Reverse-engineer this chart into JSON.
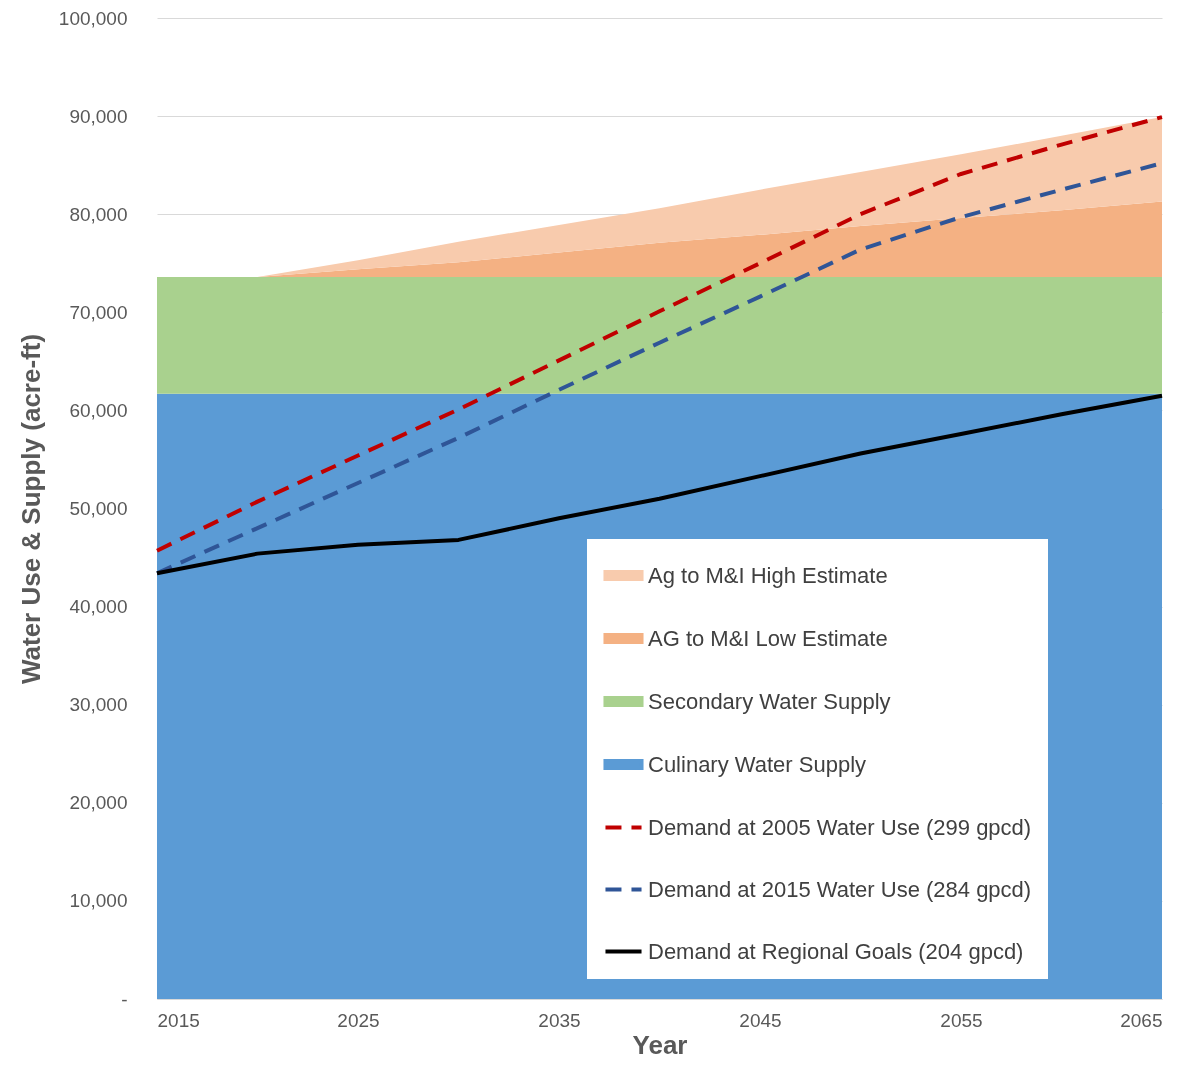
{
  "chart_data": {
    "type": "area",
    "stacked": true,
    "xlabel": "Year",
    "ylabel": "Water Use & Supply (acre-ft)",
    "x": [
      2015,
      2020,
      2025,
      2030,
      2035,
      2040,
      2045,
      2050,
      2055,
      2060,
      2065
    ],
    "series": [
      {
        "name": "Culinary Water Supply",
        "color": "#5b9bd5",
        "values": [
          61700,
          61700,
          61700,
          61700,
          61700,
          61700,
          61700,
          61700,
          61700,
          61700,
          61700
        ]
      },
      {
        "name": "Secondary Water Supply",
        "color": "#a9d18e",
        "values": [
          11900,
          11900,
          11900,
          11900,
          11900,
          11900,
          11900,
          11900,
          11900,
          11900,
          11900
        ]
      },
      {
        "name": "AG to M&I Low Estimate",
        "color": "#f4b183",
        "values": [
          0,
          0,
          800,
          1500,
          2500,
          3500,
          4300,
          5200,
          6000,
          6800,
          7700
        ]
      },
      {
        "name": "Ag to M&I High Estimate",
        "color": "#f8cbad",
        "values": [
          0,
          0,
          900,
          2100,
          2800,
          3500,
          4600,
          5500,
          6500,
          7600,
          8600
        ]
      },
      {
        "name": "Demand at 2005 Water Use (299 gpcd)",
        "type": "line",
        "color": "#c00000",
        "line_style": "dashed",
        "values": [
          45700,
          50700,
          55400,
          60100,
          65100,
          70100,
          75000,
          80000,
          84100,
          87100,
          89900
        ]
      },
      {
        "name": "Demand at 2015 Water Use (284 gpcd)",
        "type": "line",
        "color": "#2f5597",
        "line_style": "dashed",
        "values": [
          43400,
          48000,
          52600,
          57200,
          62100,
          66900,
          71600,
          76400,
          79700,
          82500,
          85200
        ]
      },
      {
        "name": "Demand at Regional Goals (204 gpcd)",
        "type": "line",
        "color": "#000000",
        "line_style": "solid",
        "values": [
          43400,
          45400,
          46300,
          46800,
          49000,
          51000,
          53300,
          55600,
          57600,
          59600,
          61500
        ]
      }
    ],
    "xlim": [
      2015,
      2065
    ],
    "xticks": [
      2015,
      2025,
      2035,
      2045,
      2055,
      2065
    ],
    "ylim": [
      0,
      100000
    ],
    "yticks": [
      {
        "value": 0,
        "label": "-"
      },
      {
        "value": 10000,
        "label": "10,000"
      },
      {
        "value": 20000,
        "label": "20,000"
      },
      {
        "value": 30000,
        "label": "30,000"
      },
      {
        "value": 40000,
        "label": "40,000"
      },
      {
        "value": 50000,
        "label": "50,000"
      },
      {
        "value": 60000,
        "label": "60,000"
      },
      {
        "value": 70000,
        "label": "70,000"
      },
      {
        "value": 80000,
        "label": "80,000"
      },
      {
        "value": 90000,
        "label": "90,000"
      },
      {
        "value": 100000,
        "label": "100,000"
      }
    ],
    "grid": "y",
    "legend": "bottom right",
    "marker": "none"
  }
}
